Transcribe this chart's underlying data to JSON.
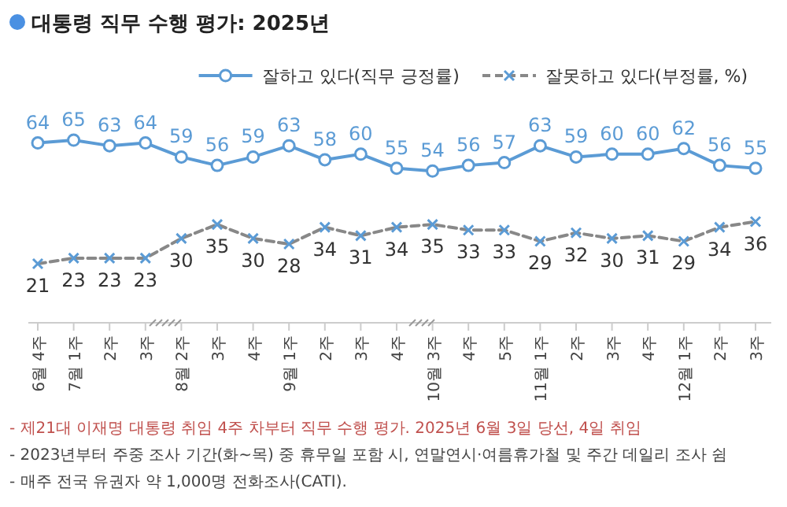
{
  "chart_data": {
    "type": "line",
    "title": "대통령 직무 수행 평가: 2025년",
    "categories": [
      "6월 4주",
      "7월 1주",
      "2주",
      "3주",
      "8월 2주",
      "3주",
      "4주",
      "9월 1주",
      "2주",
      "3주",
      "4주",
      "10월 3주",
      "4주",
      "5주",
      "11월 1주",
      "2주",
      "3주",
      "4주",
      "12월 1주",
      "2주",
      "3주"
    ],
    "series": [
      {
        "name": "잘하고 있다(직무 긍정률)",
        "color": "#5b9bd5",
        "marker": "circle",
        "line_style": "solid",
        "values": [
          64,
          65,
          63,
          64,
          59,
          56,
          59,
          63,
          58,
          60,
          55,
          54,
          56,
          57,
          63,
          59,
          60,
          60,
          62,
          56,
          55
        ]
      },
      {
        "name": "잘못하고 있다(부정률, %)",
        "color": "#888888",
        "marker": "cross",
        "line_style": "dashed",
        "values": [
          21,
          23,
          23,
          23,
          30,
          35,
          30,
          28,
          34,
          31,
          34,
          35,
          33,
          33,
          29,
          32,
          30,
          31,
          29,
          34,
          36
        ]
      }
    ],
    "data_labels": true,
    "legend": "top right",
    "annotations": [
      "- 제21대 이재명 대통령 취임 4주 차부터 직무 수행 평가. 2025년 6월 3일 당선, 4일 취임",
      "- 2023년부터 주중 조사 기간(화~목) 중 휴무일 포함 시, 연말연시·여름휴가철 및 주간 데일리 조사 쉼",
      "- 매주 전국 유권자 약 1,000명 전화조사(CATI)."
    ]
  }
}
